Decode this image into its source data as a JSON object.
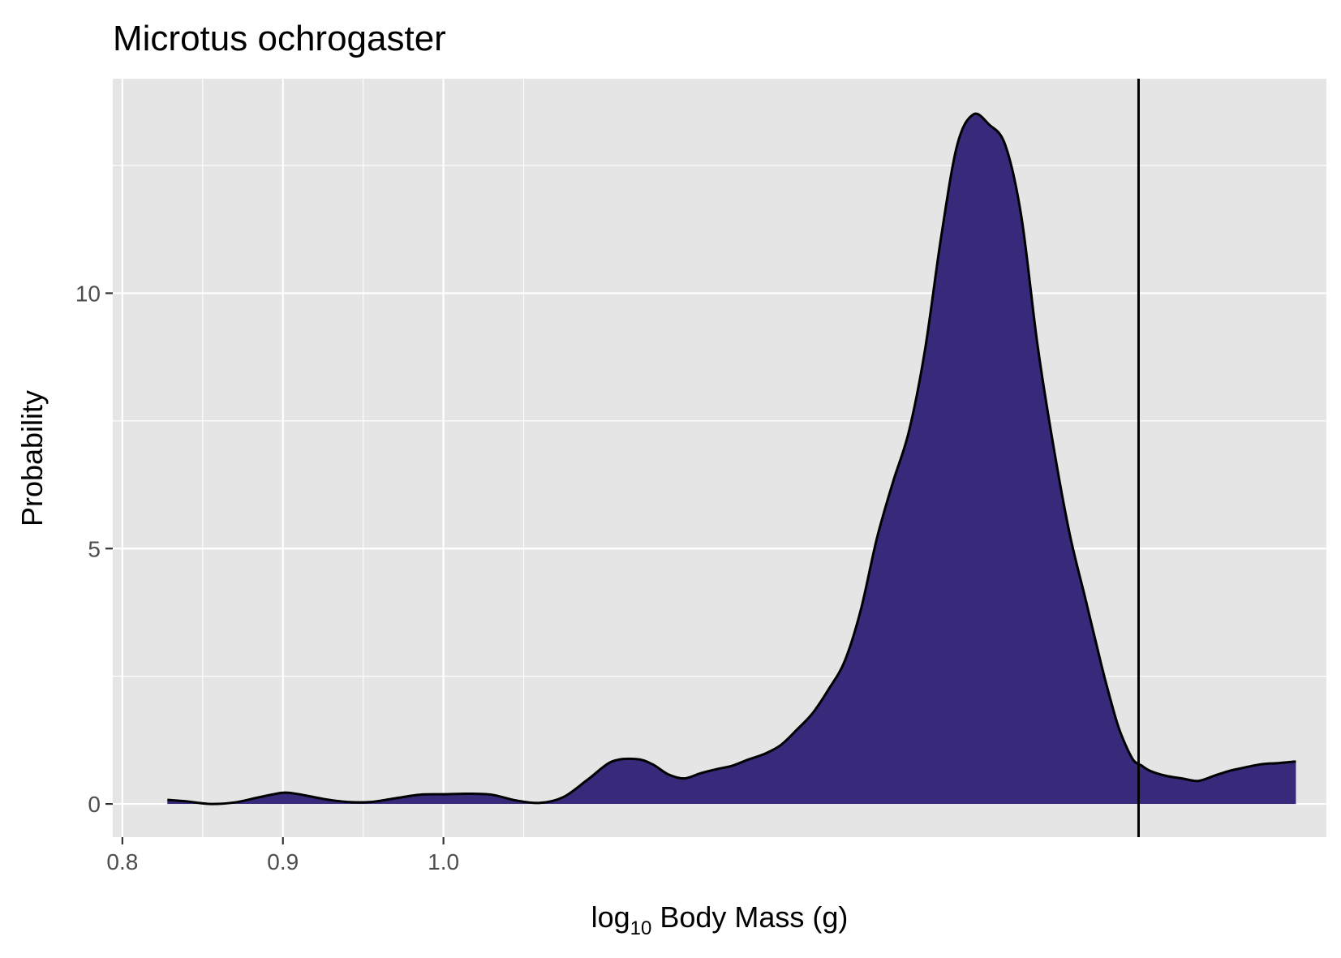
{
  "chart_data": {
    "type": "area",
    "title": "Microtus ochrogaster",
    "xlabel": {
      "base": "log",
      "subscript": "10",
      "rest": " Body Mass (g)"
    },
    "ylabel": "Probability",
    "x_ticks": [
      {
        "value": 0.8,
        "label": "0.8"
      },
      {
        "value": 0.9,
        "label": "0.9"
      },
      {
        "value": 1.0,
        "label": "1.0"
      }
    ],
    "y_ticks": [
      {
        "value": 0,
        "label": "0"
      },
      {
        "value": 5,
        "label": "5"
      },
      {
        "value": 10,
        "label": "10"
      }
    ],
    "xlim": [
      0.794,
      1.55
    ],
    "ylim": [
      -0.65,
      14.2
    ],
    "grid": true,
    "fill_color": "#39297A",
    "line_color": "#000000",
    "panel_color": "#E5E5E5",
    "vline_x": 1.433,
    "series": [
      {
        "x": [
          0.828,
          0.84,
          0.855,
          0.87,
          0.885,
          0.9,
          0.91,
          0.925,
          0.94,
          0.955,
          0.97,
          0.985,
          1.0,
          1.015,
          1.03,
          1.045,
          1.06,
          1.075,
          1.09,
          1.105,
          1.12,
          1.13,
          1.14,
          1.15,
          1.16,
          1.17,
          1.18,
          1.19,
          1.2,
          1.21,
          1.22,
          1.23,
          1.24,
          1.25,
          1.26,
          1.27,
          1.28,
          1.29,
          1.3,
          1.31,
          1.32,
          1.33,
          1.34,
          1.35,
          1.36,
          1.37,
          1.38,
          1.39,
          1.4,
          1.41,
          1.415,
          1.42,
          1.425,
          1.43,
          1.435,
          1.44,
          1.45,
          1.46,
          1.47,
          1.48,
          1.49,
          1.5,
          1.51,
          1.52,
          1.531
        ],
        "y": [
          0.08,
          0.05,
          0.0,
          0.03,
          0.13,
          0.22,
          0.19,
          0.1,
          0.04,
          0.04,
          0.11,
          0.18,
          0.19,
          0.2,
          0.18,
          0.07,
          0.02,
          0.14,
          0.48,
          0.83,
          0.88,
          0.78,
          0.58,
          0.5,
          0.6,
          0.68,
          0.75,
          0.87,
          0.98,
          1.15,
          1.45,
          1.78,
          2.25,
          2.8,
          3.8,
          5.2,
          6.3,
          7.3,
          8.9,
          11.1,
          12.9,
          13.5,
          13.3,
          12.9,
          11.5,
          9.0,
          7.0,
          5.3,
          4.0,
          2.7,
          2.1,
          1.55,
          1.15,
          0.85,
          0.75,
          0.65,
          0.55,
          0.5,
          0.45,
          0.55,
          0.65,
          0.72,
          0.78,
          0.8,
          0.83
        ]
      }
    ]
  }
}
